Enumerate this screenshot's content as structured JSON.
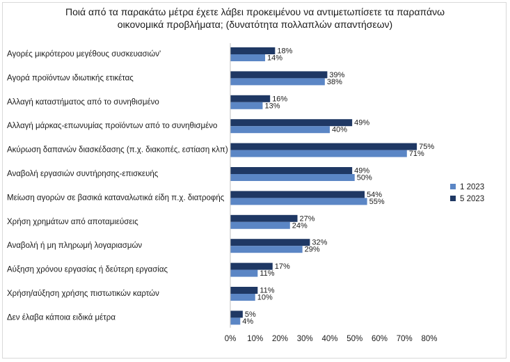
{
  "chart_data": {
    "type": "bar",
    "orientation": "horizontal",
    "title_lines": [
      "Ποιά από τα παρακάτω μέτρα έχετε λάβει προκειμένου να αντιμετωπίσετε τα παραπάνω",
      "οικονομικά προβλήματα; (δυνατότητα πολλαπλών απαντήσεων)"
    ],
    "categories": [
      "Αγορές μικρότερου μεγέθους συσκευασιών'",
      "Αγορά προϊόντων ιδιωτικής ετικέτας",
      "Αλλαγή καταστήματος από το συνηθισμένο",
      "Αλλαγή μάρκας-επωνυμίας προϊόντων από το συνηθισμένο",
      "Ακύρωση δαπανών διασκέδασης (π.χ. διακοπές, εστίαση κλπ)",
      "Αναβολή εργασιών συντήρησης-επισκευής",
      "Μείωση αγορών σε βασικά καταναλωτικά είδη π.χ. διατροφής",
      "Χρήση χρημάτων από αποταμιεύσεις",
      "Αναβολή ή μη πληρωμή λογαριασμών",
      "Αύξηση χρόνου εργασίας ή δεύτερη εργασίας",
      "Χρήση/αύξηση χρήσης πιστωτικών καρτών",
      "Δεν έλαβα κάποια ειδικά μέτρα"
    ],
    "series": [
      {
        "name": "5 2023",
        "color": "#1f3864",
        "values": [
          18,
          39,
          16,
          49,
          75,
          49,
          54,
          27,
          32,
          17,
          11,
          5
        ]
      },
      {
        "name": "1 2023",
        "color": "#5b86c5",
        "values": [
          14,
          38,
          13,
          40,
          71,
          50,
          55,
          24,
          29,
          11,
          10,
          4
        ]
      }
    ],
    "value_labels": {
      "5 2023": [
        "18%",
        "39%",
        "16%",
        "49%",
        "75%",
        "49%",
        "54%",
        "27%",
        "32%",
        "17%",
        "11%",
        "5%"
      ],
      "1 2023": [
        "14%",
        "38%",
        "13%",
        "40%",
        "71%",
        "50%",
        "55%",
        "24%",
        "29%",
        "11%",
        "10%",
        "4%"
      ]
    },
    "xlim": [
      0,
      80
    ],
    "x_ticks": [
      0,
      10,
      20,
      30,
      40,
      50,
      60,
      70,
      80
    ],
    "x_tick_labels": [
      "0%",
      "10%",
      "20%",
      "30%",
      "40%",
      "50%",
      "60%",
      "70%",
      "80%"
    ],
    "grid": false,
    "legend": {
      "position": "right",
      "entries": [
        {
          "label": "1 2023",
          "color": "#5b86c5"
        },
        {
          "label": "5 2023",
          "color": "#1f3864"
        }
      ]
    }
  }
}
